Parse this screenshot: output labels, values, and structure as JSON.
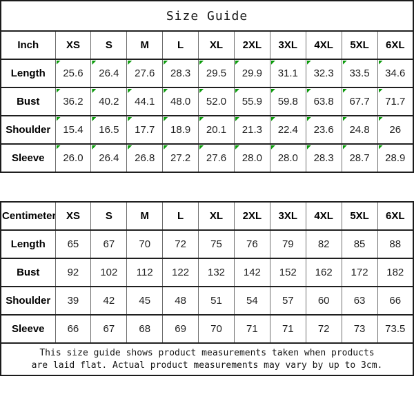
{
  "title": "Size Guide",
  "flag": {
    "icon": "excel-flag-triangle",
    "color": "#0a9b0a"
  },
  "border_color": "#1b1b1b",
  "sizes": [
    "XS",
    "S",
    "M",
    "L",
    "XL",
    "2XL",
    "3XL",
    "4XL",
    "5XL",
    "6XL"
  ],
  "inch_table": {
    "unit_label": "Inch",
    "flagged": true,
    "rows": [
      {
        "label": "Length",
        "values": [
          "25.6",
          "26.4",
          "27.6",
          "28.3",
          "29.5",
          "29.9",
          "31.1",
          "32.3",
          "33.5",
          "34.6"
        ]
      },
      {
        "label": "Bust",
        "values": [
          "36.2",
          "40.2",
          "44.1",
          "48.0",
          "52.0",
          "55.9",
          "59.8",
          "63.8",
          "67.7",
          "71.7"
        ]
      },
      {
        "label": "Shoulder",
        "values": [
          "15.4",
          "16.5",
          "17.7",
          "18.9",
          "20.1",
          "21.3",
          "22.4",
          "23.6",
          "24.8",
          "26"
        ]
      },
      {
        "label": "Sleeve",
        "values": [
          "26.0",
          "26.4",
          "26.8",
          "27.2",
          "27.6",
          "28.0",
          "28.0",
          "28.3",
          "28.7",
          "28.9"
        ]
      }
    ]
  },
  "cm_table": {
    "unit_label": "Centimeter",
    "flagged": false,
    "rows": [
      {
        "label": "Length",
        "values": [
          "65",
          "67",
          "70",
          "72",
          "75",
          "76",
          "79",
          "82",
          "85",
          "88"
        ]
      },
      {
        "label": "Bust",
        "values": [
          "92",
          "102",
          "112",
          "122",
          "132",
          "142",
          "152",
          "162",
          "172",
          "182"
        ]
      },
      {
        "label": "Shoulder",
        "values": [
          "39",
          "42",
          "45",
          "48",
          "51",
          "54",
          "57",
          "60",
          "63",
          "66"
        ]
      },
      {
        "label": "Sleeve",
        "values": [
          "66",
          "67",
          "68",
          "69",
          "70",
          "71",
          "71",
          "72",
          "73",
          "73.5"
        ]
      }
    ]
  },
  "footer": {
    "line1": "This size guide shows product measurements taken when products",
    "line2": "are laid flat. Actual product measurements may vary by up to 3cm."
  }
}
